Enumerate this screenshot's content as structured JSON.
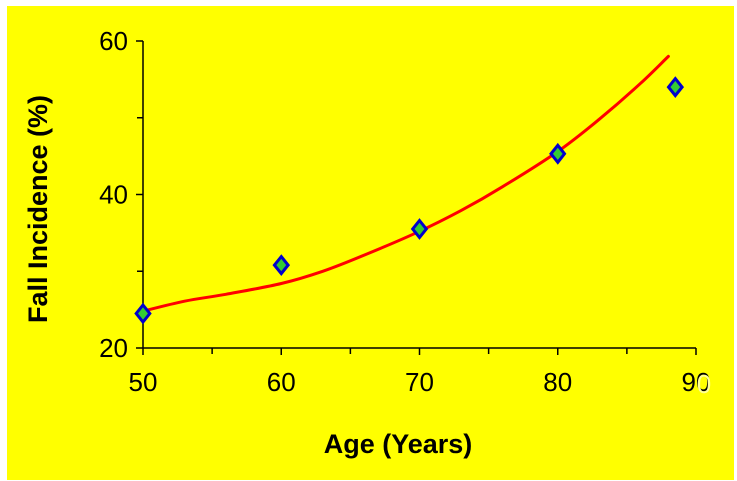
{
  "chart_data": {
    "type": "scatter",
    "title": "",
    "xlabel": "Age (Years)",
    "ylabel": "Fall Incidence (%)",
    "xlim": [
      50,
      90
    ],
    "ylim": [
      20,
      60
    ],
    "x_ticks": [
      "50",
      "60",
      "70",
      "80",
      "90"
    ],
    "y_ticks": [
      "20",
      "40",
      "60"
    ],
    "series": [
      {
        "type": "scatter",
        "marker": "diamond",
        "x": [
          50,
          60,
          70,
          80,
          88.5
        ],
        "y": [
          24.5,
          30.8,
          35.5,
          45.3,
          54
        ]
      },
      {
        "type": "line",
        "x": [
          50,
          53,
          56,
          60,
          63,
          66,
          70,
          73,
          76,
          80,
          83,
          86,
          88
        ],
        "y": [
          24.8,
          26.1,
          27.0,
          28.4,
          30.0,
          32.1,
          35.2,
          37.9,
          41.0,
          45.6,
          49.8,
          54.5,
          58.0
        ]
      }
    ],
    "colors": {
      "background": "#FFFF00",
      "marker_fill": "#33CC33",
      "marker_edge": "#0000CC",
      "line": "#FF0000",
      "axis": "#000000"
    },
    "grid": false,
    "legend": false,
    "overlay_text": "0",
    "overlay_text_color": "#FFFF99"
  }
}
